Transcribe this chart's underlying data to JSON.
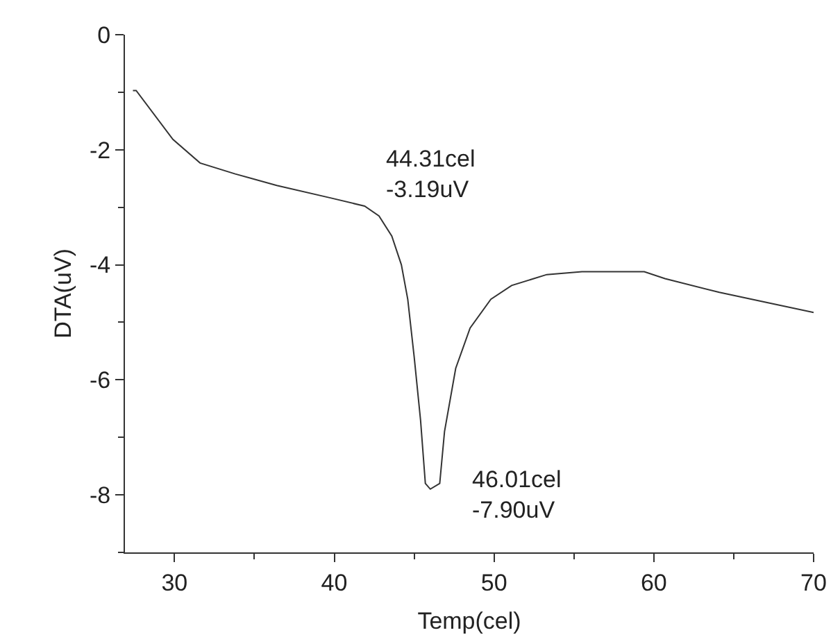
{
  "chart_data": {
    "type": "line",
    "xlabel": "Temp(cel)",
    "ylabel": "DTA(uV)",
    "x": [
      27.4,
      27.6,
      29.9,
      31.6,
      33.8,
      36.4,
      39.8,
      41.9,
      42.8,
      43.6,
      44.2,
      44.6,
      45.0,
      45.4,
      45.7,
      46.01,
      46.6,
      46.9,
      47.6,
      48.5,
      49.8,
      51.1,
      53.3,
      55.5,
      59.4,
      60.7,
      64.1,
      67.5,
      70.0
    ],
    "values": [
      -0.97,
      -0.97,
      -1.82,
      -2.23,
      -2.42,
      -2.62,
      -2.84,
      -2.98,
      -3.15,
      -3.5,
      -4.0,
      -4.6,
      -5.6,
      -6.7,
      -7.8,
      -7.9,
      -7.8,
      -6.9,
      -5.8,
      -5.1,
      -4.6,
      -4.36,
      -4.17,
      -4.12,
      -4.12,
      -4.24,
      -4.48,
      -4.68,
      -4.83
    ],
    "color": "#333333",
    "grid": false,
    "marker": "none",
    "line_style": "solid",
    "xlim": [
      26.9,
      70
    ],
    "xticks": [
      30,
      40,
      50,
      60,
      70
    ],
    "ylim": [
      -9,
      0
    ],
    "yticks": [
      -8,
      -6,
      -4,
      -2,
      0
    ],
    "annotations": [
      "44.31cel\n-3.19uV",
      {
        "text": "46.01cel\n-7.90uV",
        "x": 46.01,
        "y": -7.9
      }
    ]
  }
}
